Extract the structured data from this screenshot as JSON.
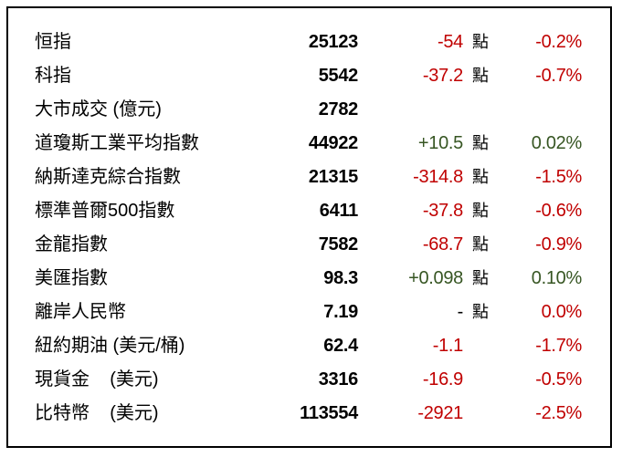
{
  "colors": {
    "negative": "#c00000",
    "positive": "#375623",
    "text": "#000000"
  },
  "rows": [
    {
      "name": "恒指",
      "value": "25123",
      "change": "-54",
      "unit": "點",
      "pct": "-0.2%",
      "change_dir": "neg",
      "pct_dir": "neg"
    },
    {
      "name": "科指",
      "value": "5542",
      "change": "-37.2",
      "unit": "點",
      "pct": "-0.7%",
      "change_dir": "neg",
      "pct_dir": "neg"
    },
    {
      "name": "大市成交 (億元)",
      "value": "2782",
      "change": "",
      "unit": "",
      "pct": "",
      "change_dir": "",
      "pct_dir": ""
    },
    {
      "name": "道瓊斯工業平均指數",
      "value": "44922",
      "change": "+10.5",
      "unit": "點",
      "pct": "0.02%",
      "change_dir": "pos",
      "pct_dir": "pos"
    },
    {
      "name": "納斯達克綜合指數",
      "value": "21315",
      "change": "-314.8",
      "unit": "點",
      "pct": "-1.5%",
      "change_dir": "neg",
      "pct_dir": "neg"
    },
    {
      "name": "標準普爾500指數",
      "value": "6411",
      "change": "-37.8",
      "unit": "點",
      "pct": "-0.6%",
      "change_dir": "neg",
      "pct_dir": "neg"
    },
    {
      "name": "金龍指數",
      "value": "7582",
      "change": "-68.7",
      "unit": "點",
      "pct": "-0.9%",
      "change_dir": "neg",
      "pct_dir": "neg"
    },
    {
      "name": "美匯指數",
      "value": "98.3",
      "change": "+0.098",
      "unit": "點",
      "pct": "0.10%",
      "change_dir": "pos",
      "pct_dir": "pos"
    },
    {
      "name": "離岸人民幣",
      "value": "7.19",
      "change": "-",
      "unit": "點",
      "pct": "0.0%",
      "change_dir": "",
      "pct_dir": "neg"
    },
    {
      "name": "紐約期油 (美元/桶)",
      "value": "62.4",
      "change": "-1.1",
      "unit": "",
      "pct": "-1.7%",
      "change_dir": "neg",
      "pct_dir": "neg"
    },
    {
      "name": "現貨金    (美元)",
      "value": "3316",
      "change": "-16.9",
      "unit": "",
      "pct": "-0.5%",
      "change_dir": "neg",
      "pct_dir": "neg"
    },
    {
      "name": "比特幣    (美元)",
      "value": "113554",
      "change": "-2921",
      "unit": "",
      "pct": "-2.5%",
      "change_dir": "neg",
      "pct_dir": "neg"
    }
  ]
}
